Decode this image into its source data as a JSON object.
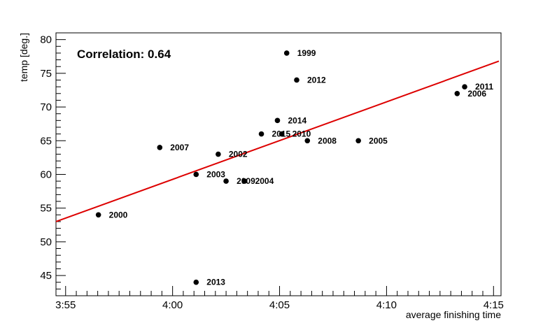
{
  "chart_data": {
    "type": "scatter",
    "title": "",
    "xlabel": "average finishing time",
    "ylabel": "temp [deg.]",
    "annotation": "Correlation: 0.64",
    "x_unit": "minutes",
    "xlim": [
      "3:55",
      "4:15"
    ],
    "ylim": [
      42,
      81
    ],
    "x_ticks": [
      "3:55",
      "4:00",
      "4:05",
      "4:10",
      "4:15"
    ],
    "y_ticks": [
      45,
      50,
      55,
      60,
      65,
      70,
      75,
      80
    ],
    "grid": false,
    "legend": "none",
    "points": [
      {
        "label": "1999",
        "x": "4:05:20",
        "y": 78
      },
      {
        "label": "2000",
        "x": "3:56:32",
        "y": 54
      },
      {
        "label": "2002",
        "x": "4:02:08",
        "y": 63
      },
      {
        "label": "2003",
        "x": "4:01:06",
        "y": 60
      },
      {
        "label": "2004",
        "x": "4:03:22",
        "y": 59
      },
      {
        "label": "2005",
        "x": "4:08:41",
        "y": 65
      },
      {
        "label": "2006",
        "x": "4:13:18",
        "y": 72
      },
      {
        "label": "2007",
        "x": "3:59:24",
        "y": 64
      },
      {
        "label": "2008",
        "x": "4:06:18",
        "y": 65
      },
      {
        "label": "2009",
        "x": "4:02:30",
        "y": 59
      },
      {
        "label": "2010",
        "x": "4:05:06",
        "y": 66
      },
      {
        "label": "2011",
        "x": "4:13:39",
        "y": 73
      },
      {
        "label": "2012",
        "x": "4:05:48",
        "y": 74
      },
      {
        "label": "2013",
        "x": "4:01:06",
        "y": 44
      },
      {
        "label": "2014",
        "x": "4:04:54",
        "y": 68
      },
      {
        "label": "2015",
        "x": "4:04:09",
        "y": 66
      }
    ],
    "fit_line": {
      "x": [
        "3:55",
        "4:15:15"
      ],
      "y": [
        53.0,
        76.8
      ]
    },
    "colors": {
      "points": "#000000",
      "fit_line": "#dd0000",
      "axes": "#000000"
    }
  }
}
